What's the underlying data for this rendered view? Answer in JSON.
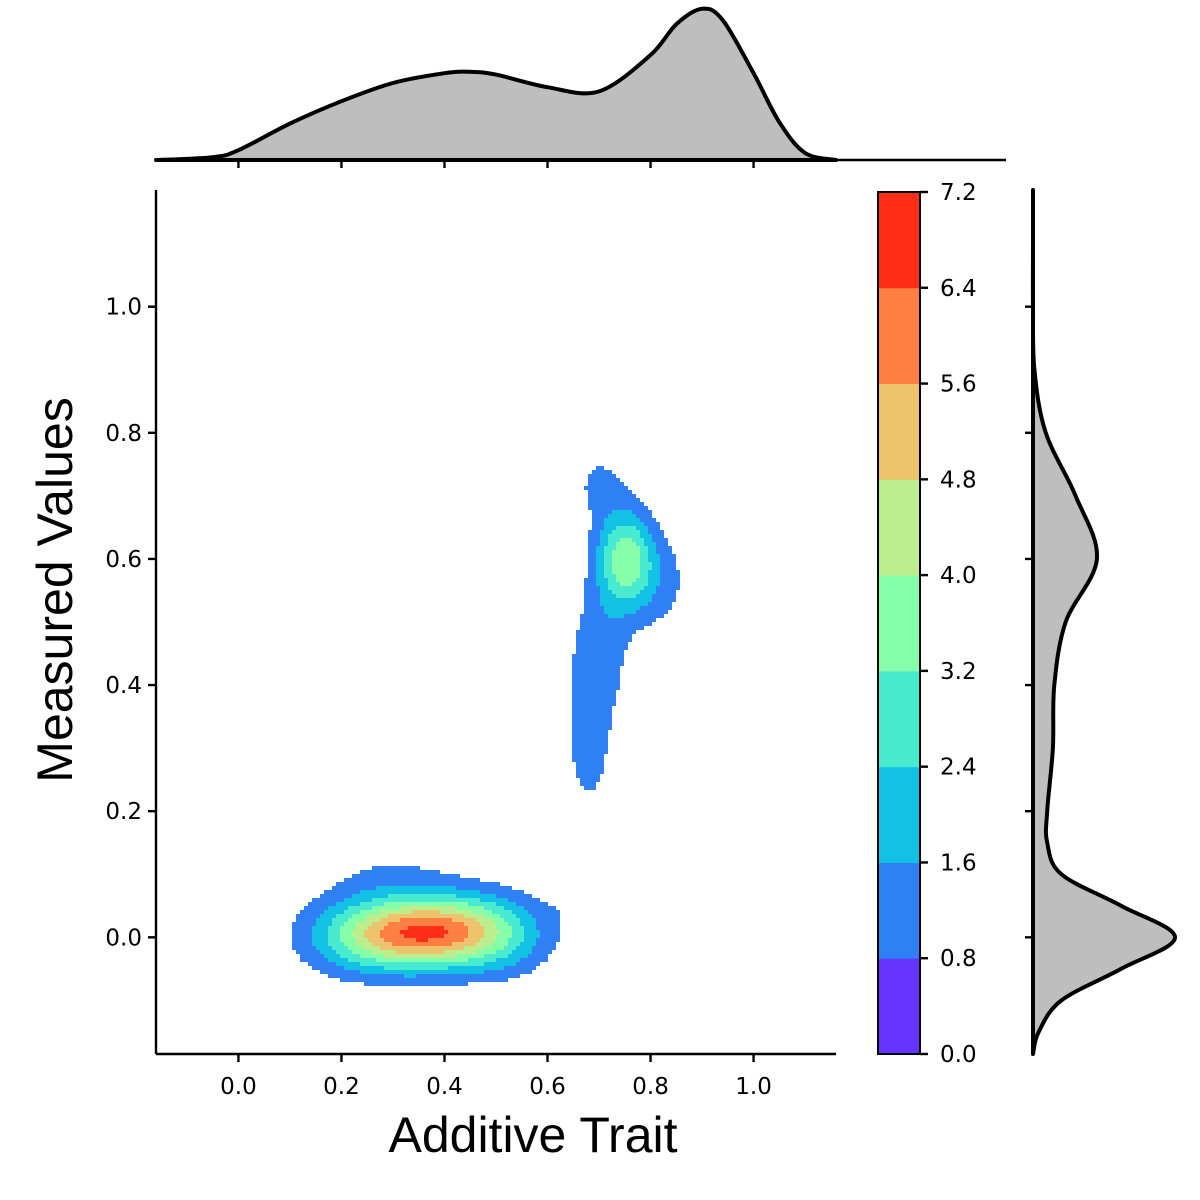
{
  "chart_data": {
    "type": "contour",
    "xlabel": "Additive Trait",
    "ylabel": "Measured Values",
    "xlim": [
      -0.16,
      1.16
    ],
    "ylim": [
      -0.185,
      1.185
    ],
    "x_ticks": [
      "0.0",
      "0.2",
      "0.4",
      "0.6",
      "0.8",
      "1.0"
    ],
    "y_ticks": [
      "0.0",
      "0.2",
      "0.4",
      "0.6",
      "0.8",
      "1.0"
    ],
    "colorbar": {
      "levels": [
        "0.0",
        "0.8",
        "1.6",
        "2.4",
        "3.2",
        "4.0",
        "4.8",
        "5.6",
        "6.4",
        "7.2"
      ],
      "colors": [
        "#6633ff",
        "#2f7ff5",
        "#13c1e5",
        "#48ebcf",
        "#85ffa9",
        "#bcee8e",
        "#eec36d",
        "#ff7f43",
        "#ff2e17"
      ]
    },
    "density_components": [
      {
        "x": 0.3,
        "y": 0.005,
        "sx": 0.09,
        "sy": 0.04,
        "w": 0.18
      },
      {
        "x": 0.42,
        "y": 0.01,
        "sx": 0.09,
        "sy": 0.04,
        "w": 0.18
      },
      {
        "x": 0.2,
        "y": 0.0,
        "sx": 0.08,
        "sy": 0.05,
        "w": 0.04
      },
      {
        "x": 0.52,
        "y": 0.0,
        "sx": 0.07,
        "sy": 0.05,
        "w": 0.05
      },
      {
        "x": 0.64,
        "y": 0.08,
        "sx": 0.03,
        "sy": 0.05,
        "w": 0.02
      },
      {
        "x": 0.3,
        "y": 0.1,
        "sx": 0.09,
        "sy": 0.03,
        "w": 0.03
      },
      {
        "x": 0.68,
        "y": 0.3,
        "sx": 0.035,
        "sy": 0.08,
        "w": 0.05
      },
      {
        "x": 0.7,
        "y": 0.45,
        "sx": 0.04,
        "sy": 0.07,
        "w": 0.06
      },
      {
        "x": 0.75,
        "y": 0.6,
        "sx": 0.04,
        "sy": 0.055,
        "w": 0.16
      },
      {
        "x": 0.7,
        "y": 0.72,
        "sx": 0.04,
        "sy": 0.04,
        "w": 0.04
      },
      {
        "x": 0.82,
        "y": 0.56,
        "sx": 0.05,
        "sy": 0.06,
        "w": 0.04
      }
    ],
    "x_marginal": {
      "x": [
        -0.16,
        -0.05,
        0.0,
        0.1,
        0.2,
        0.3,
        0.4,
        0.45,
        0.5,
        0.6,
        0.7,
        0.8,
        0.85,
        0.9,
        0.94,
        1.0,
        1.05,
        1.1,
        1.16
      ],
      "density": [
        0.0,
        0.02,
        0.07,
        0.26,
        0.42,
        0.55,
        0.62,
        0.63,
        0.61,
        0.52,
        0.49,
        0.75,
        0.97,
        1.08,
        1.0,
        0.62,
        0.27,
        0.05,
        0.0
      ]
    },
    "y_marginal": {
      "y": [
        -0.185,
        -0.15,
        -0.1,
        -0.05,
        0.0,
        0.05,
        0.1,
        0.15,
        0.2,
        0.3,
        0.4,
        0.5,
        0.6,
        0.7,
        0.8,
        0.9,
        1.0,
        1.1,
        1.185
      ],
      "density": [
        0.0,
        0.04,
        0.2,
        0.62,
        1.0,
        0.62,
        0.2,
        0.1,
        0.1,
        0.14,
        0.15,
        0.23,
        0.45,
        0.3,
        0.09,
        0.01,
        0.0,
        0.0,
        0.0
      ]
    }
  }
}
